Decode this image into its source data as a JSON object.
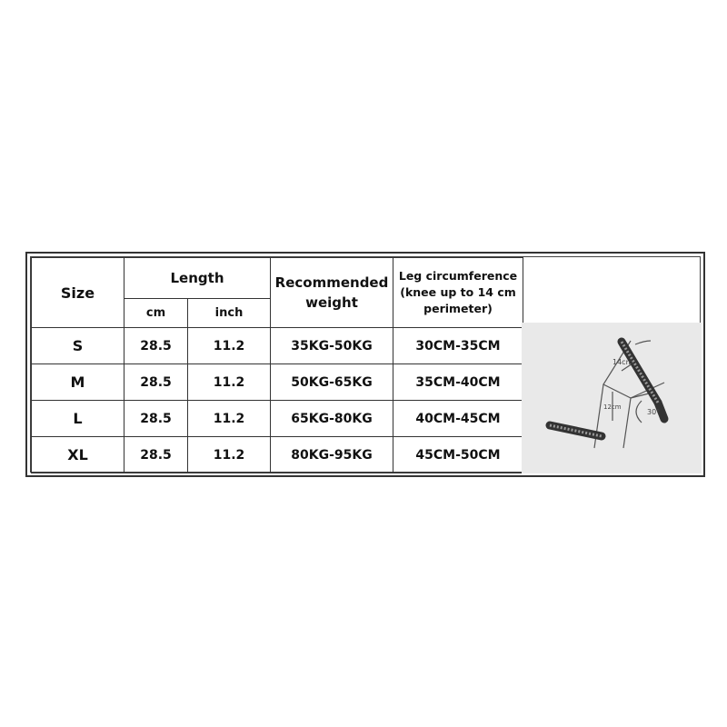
{
  "table": {
    "headers": {
      "size": "Size",
      "length": "Length",
      "cm": "cm",
      "inch": "inch",
      "weight_line1": "Recommended",
      "weight_line2": "weight",
      "leg_line1": "Leg circumference",
      "leg_line2": "(knee up to 14 cm",
      "leg_line3": "perimeter)"
    },
    "rows": [
      {
        "size": "S",
        "cm": "28.5",
        "inch": "11.2",
        "weight": "35KG-50KG",
        "leg": "30CM-35CM"
      },
      {
        "size": "M",
        "cm": "28.5",
        "inch": "11.2",
        "weight": "50KG-65KG",
        "leg": "35CM-40CM"
      },
      {
        "size": "L",
        "cm": "28.5",
        "inch": "11.2",
        "weight": "65KG-80KG",
        "leg": "40CM-45CM"
      },
      {
        "size": "XL",
        "cm": "28.5",
        "inch": "11.2",
        "weight": "80KG-95KG",
        "leg": "45CM-50CM"
      }
    ]
  },
  "diagram": {
    "upper": "14cm",
    "lower": "12cm",
    "angle": "30°"
  }
}
